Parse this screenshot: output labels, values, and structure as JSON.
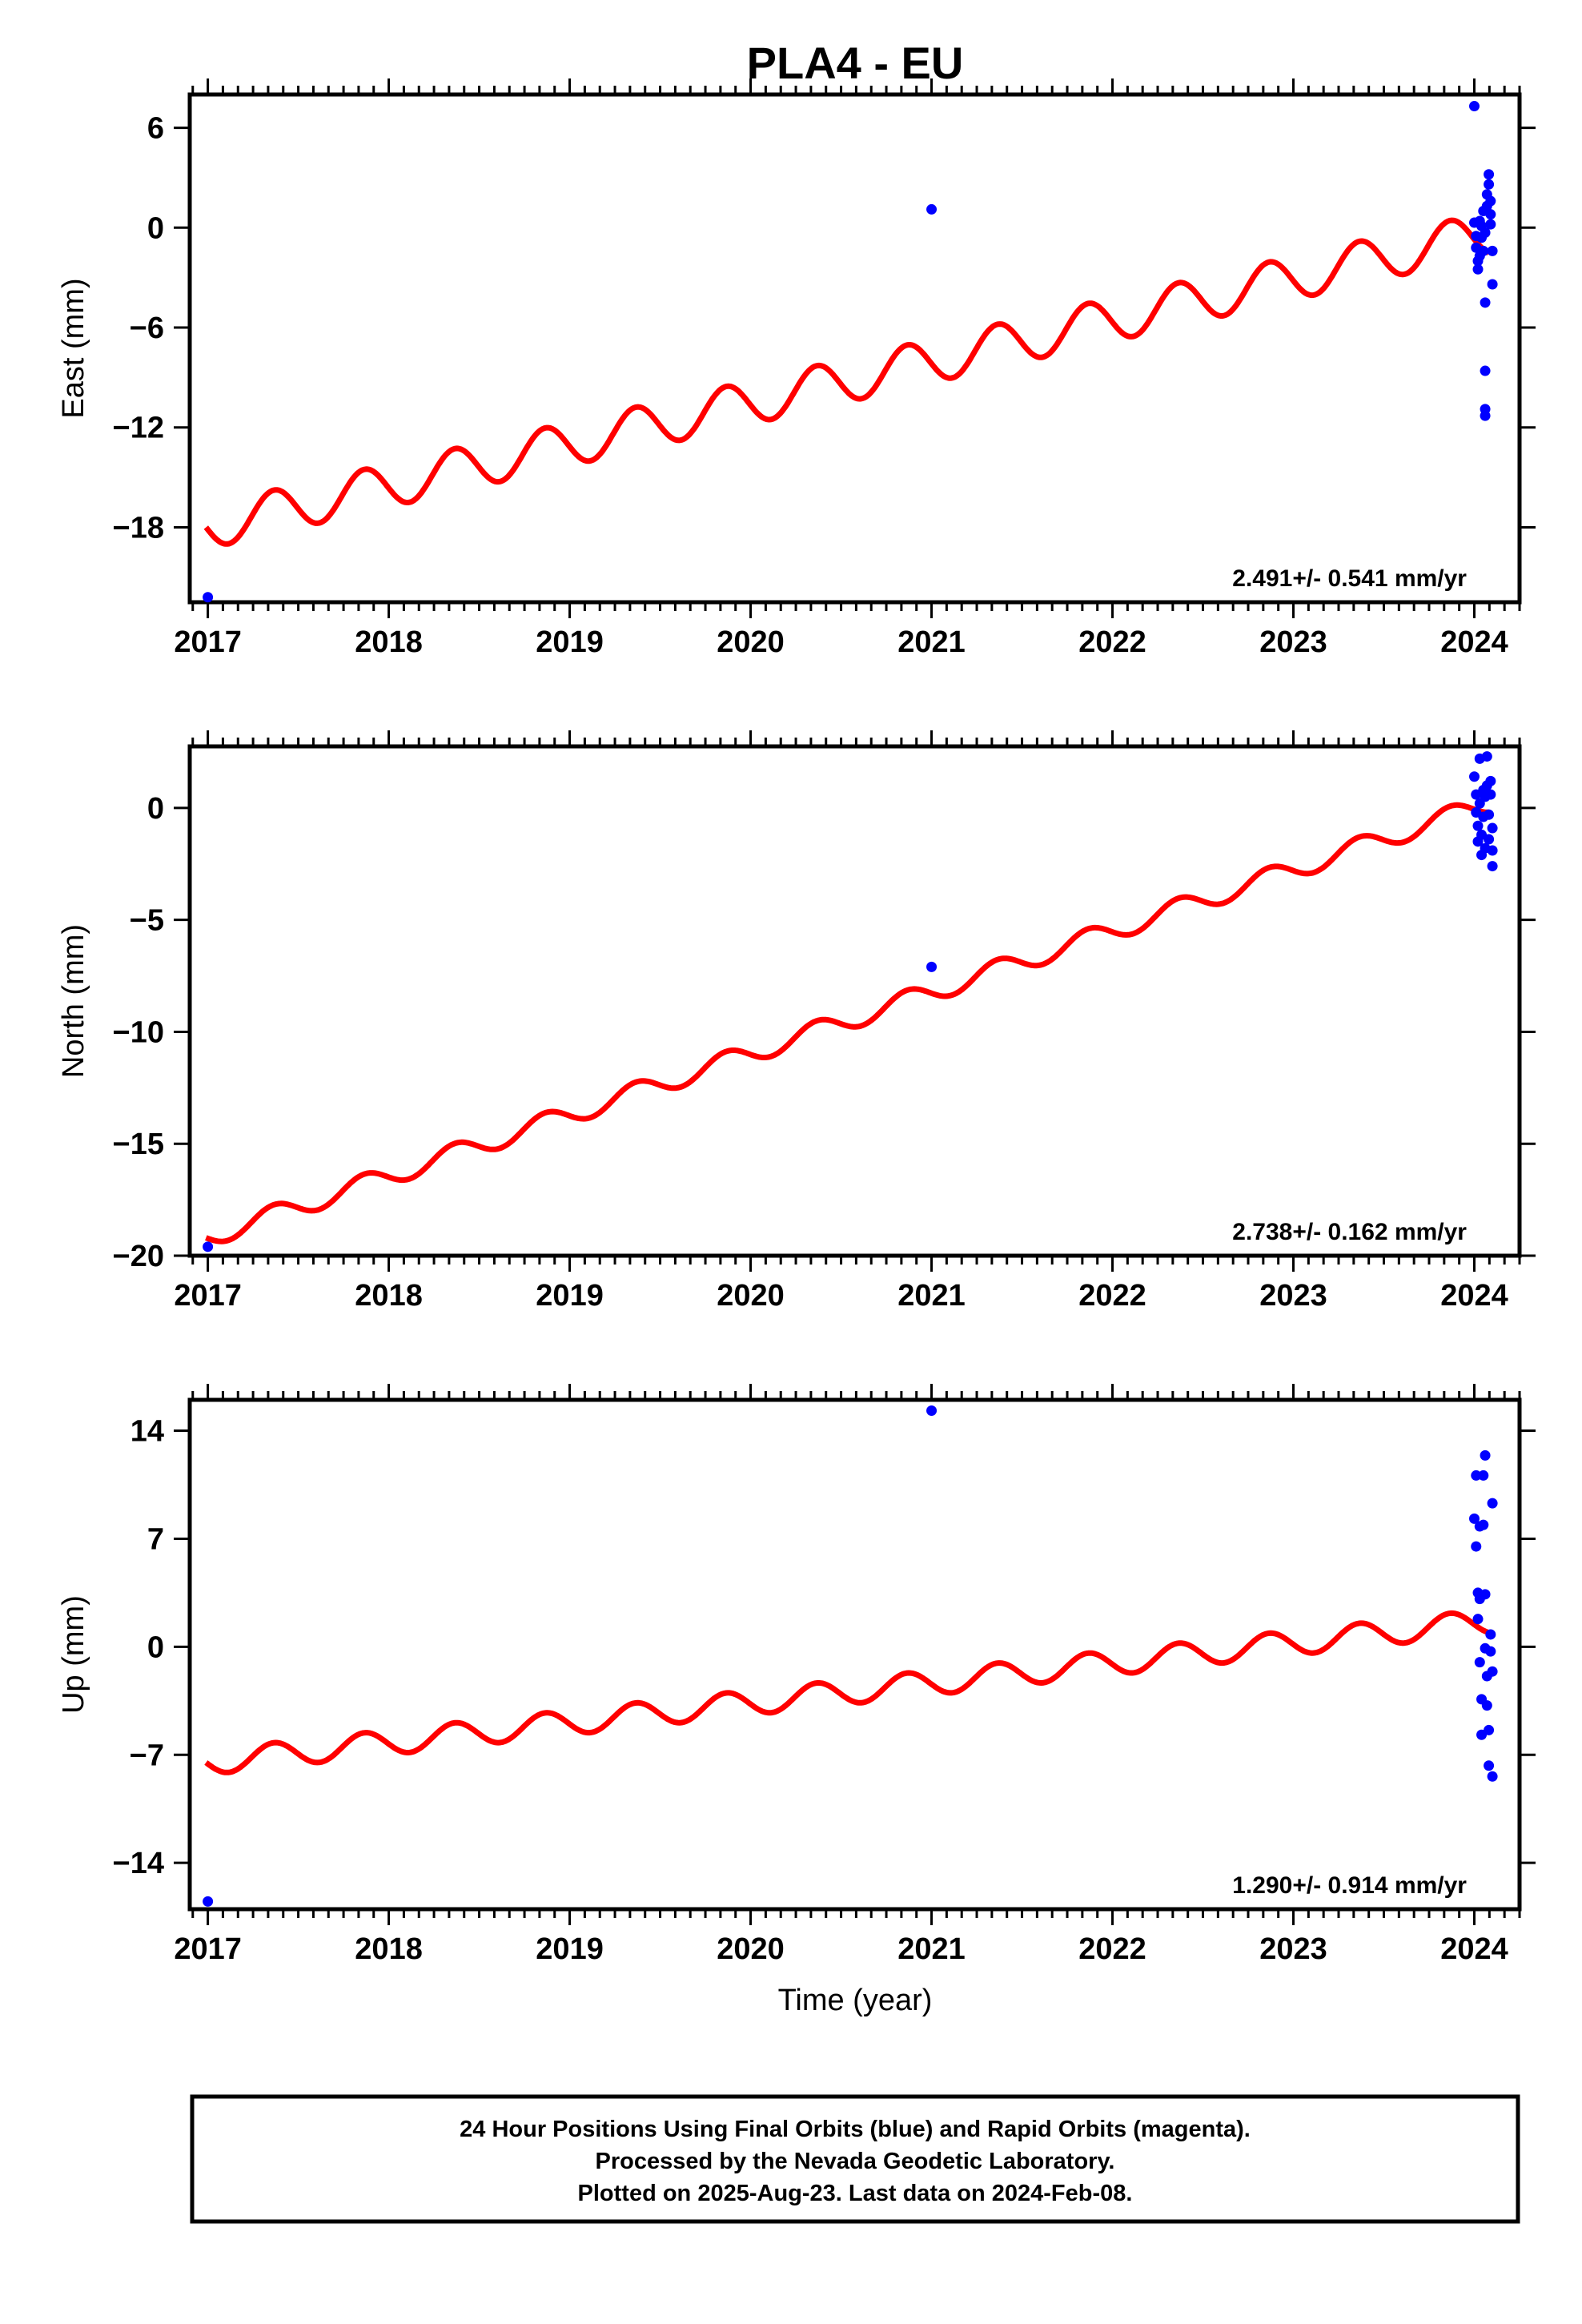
{
  "title": "PLA4 - EU",
  "xlabel": "Time (year)",
  "colors": {
    "model": "#ff0000",
    "final": "#0000ff",
    "frame": "#000000"
  },
  "footer": {
    "lines": [
      "24 Hour Positions Using Final Orbits (blue) and Rapid Orbits (magenta).",
      "Processed by the Nevada Geodetic Laboratory.",
      "Plotted on 2025-Aug-23. Last data on 2024-Feb-08."
    ]
  },
  "chart_data": [
    {
      "type": "scatter",
      "ylabel": "East (mm)",
      "rate_label": "2.491+/- 0.541 mm/yr",
      "xlim": [
        2016.9,
        2024.25
      ],
      "ylim": [
        -22.5,
        8
      ],
      "xticks": [
        "2017",
        "2018",
        "2019",
        "2020",
        "2021",
        "2022",
        "2023",
        "2024"
      ],
      "yticks": [
        6,
        0,
        -6,
        -12,
        -18
      ],
      "ytick_labels": [
        "6",
        "0",
        "−6",
        "−12",
        "−18"
      ],
      "model": {
        "t0": 2016.99,
        "t1": 2024.08,
        "y0": -18.0,
        "slope": 2.491,
        "amp": 1.3,
        "period": 0.5
      },
      "points": [
        [
          2017.0,
          -22.2
        ],
        [
          2021.0,
          1.1
        ],
        [
          2024.0,
          7.3
        ],
        [
          2024.0,
          0.3
        ],
        [
          2024.01,
          -0.5
        ],
        [
          2024.01,
          -1.2
        ],
        [
          2024.02,
          -2.0
        ],
        [
          2024.02,
          -2.5
        ],
        [
          2024.03,
          0.4
        ],
        [
          2024.03,
          -1.7
        ],
        [
          2024.04,
          -0.6
        ],
        [
          2024.04,
          0.1
        ],
        [
          2024.05,
          -1.4
        ],
        [
          2024.05,
          1.0
        ],
        [
          2024.06,
          -0.3
        ],
        [
          2024.06,
          -4.5
        ],
        [
          2024.06,
          -8.6
        ],
        [
          2024.06,
          -10.9
        ],
        [
          2024.06,
          -11.3
        ],
        [
          2024.07,
          1.3
        ],
        [
          2024.07,
          2.0
        ],
        [
          2024.08,
          3.2
        ],
        [
          2024.08,
          2.6
        ],
        [
          2024.09,
          1.6
        ],
        [
          2024.09,
          0.8
        ],
        [
          2024.09,
          0.2
        ],
        [
          2024.1,
          -1.4
        ],
        [
          2024.1,
          -3.4
        ]
      ]
    },
    {
      "type": "scatter",
      "ylabel": "North (mm)",
      "rate_label": "2.738+/- 0.162 mm/yr",
      "xlim": [
        2016.9,
        2024.25
      ],
      "ylim": [
        -20,
        2.75
      ],
      "xticks": [
        "2017",
        "2018",
        "2019",
        "2020",
        "2021",
        "2022",
        "2023",
        "2024"
      ],
      "yticks": [
        0,
        -5,
        -10,
        -15,
        -20
      ],
      "ytick_labels": [
        "0",
        "−5",
        "−10",
        "−15",
        "−20"
      ],
      "model": {
        "t0": 2016.99,
        "t1": 2024.08,
        "y0": -19.2,
        "slope": 2.738,
        "amp": 0.45,
        "period": 0.5
      },
      "points": [
        [
          2017.0,
          -19.6
        ],
        [
          2021.0,
          -7.1
        ],
        [
          2024.0,
          1.4
        ],
        [
          2024.01,
          0.6
        ],
        [
          2024.01,
          -0.2
        ],
        [
          2024.02,
          -0.8
        ],
        [
          2024.02,
          -1.5
        ],
        [
          2024.03,
          2.2
        ],
        [
          2024.03,
          0.2
        ],
        [
          2024.04,
          -1.2
        ],
        [
          2024.04,
          -2.1
        ],
        [
          2024.05,
          0.8
        ],
        [
          2024.05,
          -0.4
        ],
        [
          2024.06,
          -1.8
        ],
        [
          2024.06,
          0.5
        ],
        [
          2024.07,
          2.3
        ],
        [
          2024.07,
          1.0
        ],
        [
          2024.08,
          -0.3
        ],
        [
          2024.08,
          -1.4
        ],
        [
          2024.09,
          0.6
        ],
        [
          2024.09,
          1.2
        ],
        [
          2024.1,
          -1.9
        ],
        [
          2024.1,
          -2.6
        ],
        [
          2024.1,
          -0.9
        ]
      ]
    },
    {
      "type": "scatter",
      "ylabel": "Up (mm)",
      "rate_label": "1.290+/- 0.914 mm/yr",
      "xlim": [
        2016.9,
        2024.25
      ],
      "ylim": [
        -17,
        16
      ],
      "xticks": [
        "2017",
        "2018",
        "2019",
        "2020",
        "2021",
        "2022",
        "2023",
        "2024"
      ],
      "yticks": [
        14,
        7,
        0,
        -7,
        -14
      ],
      "ytick_labels": [
        "14",
        "7",
        "0",
        "−7",
        "−14"
      ],
      "model": {
        "t0": 2016.99,
        "t1": 2024.08,
        "y0": -7.5,
        "slope": 1.29,
        "amp": 0.8,
        "period": 0.5
      },
      "points": [
        [
          2017.0,
          -16.5
        ],
        [
          2021.0,
          15.3
        ],
        [
          2024.0,
          8.3
        ],
        [
          2024.01,
          11.1
        ],
        [
          2024.01,
          6.5
        ],
        [
          2024.02,
          3.5
        ],
        [
          2024.02,
          1.8
        ],
        [
          2024.03,
          7.8
        ],
        [
          2024.03,
          3.1
        ],
        [
          2024.03,
          -1.0
        ],
        [
          2024.04,
          -3.4
        ],
        [
          2024.04,
          -5.7
        ],
        [
          2024.05,
          11.1
        ],
        [
          2024.05,
          7.9
        ],
        [
          2024.06,
          12.4
        ],
        [
          2024.06,
          3.4
        ],
        [
          2024.06,
          -0.1
        ],
        [
          2024.07,
          -1.9
        ],
        [
          2024.07,
          -3.8
        ],
        [
          2024.08,
          -5.4
        ],
        [
          2024.08,
          -7.7
        ],
        [
          2024.09,
          0.8
        ],
        [
          2024.09,
          -0.3
        ],
        [
          2024.1,
          9.3
        ],
        [
          2024.1,
          -1.6
        ],
        [
          2024.1,
          -8.4
        ]
      ]
    }
  ]
}
